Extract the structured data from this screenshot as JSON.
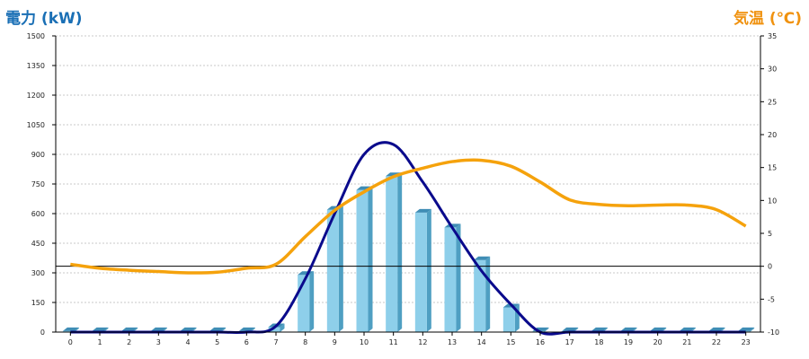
{
  "titles": {
    "left_axis": "電力 (kW)",
    "right_axis": "気温 (℃)"
  },
  "colors": {
    "bar_front": "#8ecfea",
    "bar_side": "#4f9fc2",
    "bar_top": "#3f8db5",
    "power_line": "#0a0a8c",
    "temp_line": "#f5a20c",
    "left_title": "#1a6fb5",
    "right_title": "#f0920f",
    "grid": "#c8c8c8"
  },
  "chart_data": {
    "type": "bar+line",
    "categories": [
      "0",
      "1",
      "2",
      "3",
      "4",
      "5",
      "6",
      "7",
      "8",
      "9",
      "10",
      "11",
      "12",
      "13",
      "14",
      "15",
      "16",
      "17",
      "18",
      "19",
      "20",
      "21",
      "22",
      "23"
    ],
    "y_left": {
      "label": "電力 (kW)",
      "min": 0,
      "max": 1500,
      "ticks": [
        0,
        150,
        300,
        450,
        600,
        750,
        900,
        1050,
        1200,
        1350,
        1500
      ]
    },
    "y_right": {
      "label": "気温 (℃)",
      "min": -10,
      "max": 35,
      "ticks": [
        -10,
        -5,
        0,
        5,
        10,
        15,
        20,
        25,
        30,
        35
      ]
    },
    "bars": [
      5,
      5,
      5,
      5,
      5,
      5,
      5,
      25,
      290,
      620,
      720,
      790,
      605,
      530,
      365,
      125,
      5,
      5,
      5,
      5,
      5,
      5,
      5,
      5
    ],
    "power_line": [
      0,
      0,
      0,
      0,
      0,
      0,
      0,
      30,
      270,
      600,
      900,
      950,
      760,
      530,
      310,
      140,
      0,
      0,
      0,
      0,
      0,
      0,
      0,
      0
    ],
    "temperature": [
      0.3,
      -0.3,
      -0.6,
      -0.8,
      -1.0,
      -0.9,
      -0.3,
      0.3,
      4.5,
      8.5,
      11.3,
      13.6,
      14.9,
      15.9,
      16.1,
      15.2,
      12.8,
      10.1,
      9.4,
      9.2,
      9.3,
      9.3,
      8.6,
      6.1
    ],
    "grid": true,
    "zero_line_right_axis": 0
  }
}
